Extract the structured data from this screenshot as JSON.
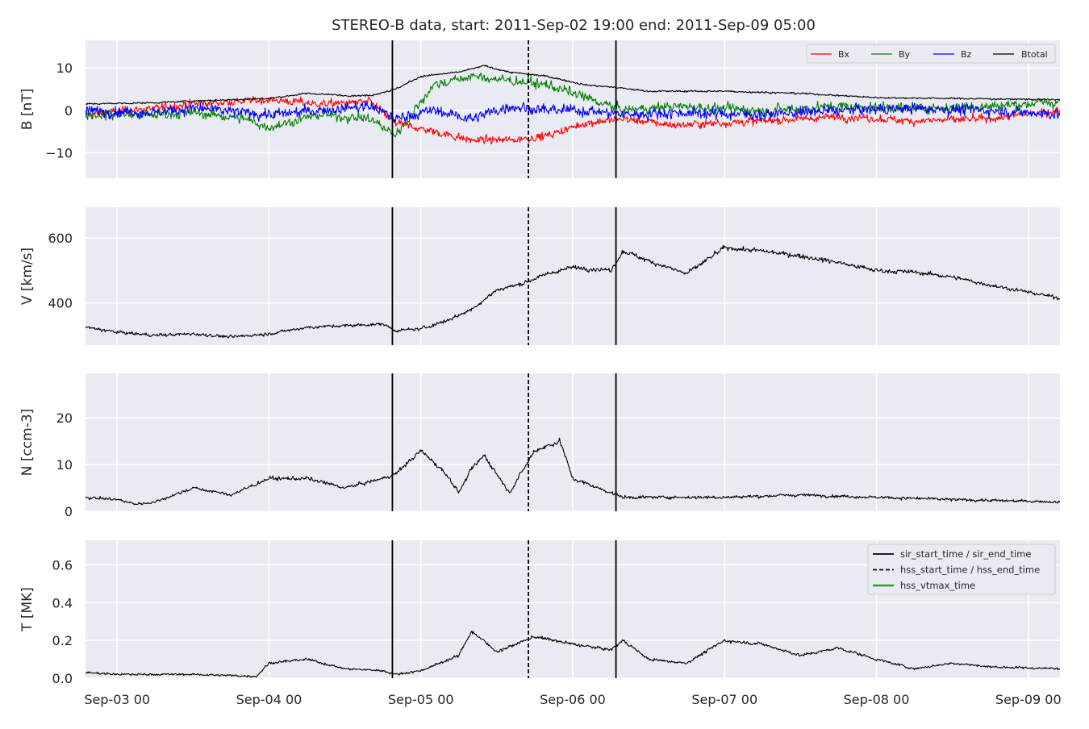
{
  "chart_data": {
    "type": "line",
    "title": "STEREO-B data, start: 2011-Sep-02 19:00  end: 2011-Sep-09 05:00",
    "xlim": [
      "2011-09-02 19:00",
      "2011-09-09 05:00"
    ],
    "x_ticks": [
      "Sep-03 00",
      "Sep-04 00",
      "Sep-05 00",
      "Sep-06 00",
      "Sep-07 00",
      "Sep-08 00",
      "Sep-09 00"
    ],
    "x_tick_dates": [
      "2011-09-03 00:00",
      "2011-09-04 00:00",
      "2011-09-05 00:00",
      "2011-09-06 00:00",
      "2011-09-07 00:00",
      "2011-09-08 00:00",
      "2011-09-09 00:00"
    ],
    "markers": [
      {
        "label": "sir_start_time / sir_end_time",
        "style": "solid",
        "color": "#000000",
        "times": [
          "2011-09-04 19:30",
          "2011-09-06 06:50"
        ]
      },
      {
        "label": "hss_start_time / hss_end_time",
        "style": "dashed",
        "color": "#000000",
        "times": [
          "2011-09-05 17:00"
        ]
      },
      {
        "label": "hss_vtmax_time",
        "style": "solid",
        "color": "#2ca02c",
        "times": []
      }
    ],
    "colors": {
      "Bx": "#ff0000",
      "By": "#008000",
      "Bz": "#0000ff",
      "Btotal": "#000000",
      "panel_bg": "#eaeaf2",
      "grid": "#ffffff"
    },
    "panels": [
      {
        "id": "B",
        "ylabel": "B [nT]",
        "ylim": [
          -16,
          16.5
        ],
        "yticks": [
          -10,
          0,
          10
        ],
        "ytick_labels": [
          "−10",
          "0",
          "10"
        ],
        "legend": "top-right",
        "series": [
          {
            "name": "Bx",
            "points": [
              [
                "2011-09-02 19:00",
                -1
              ],
              [
                "2011-09-03 06:00",
                0.5
              ],
              [
                "2011-09-03 12:00",
                1.5
              ],
              [
                "2011-09-04 00:00",
                2.5
              ],
              [
                "2011-09-04 08:00",
                1.5
              ],
              [
                "2011-09-04 16:00",
                2
              ],
              [
                "2011-09-04 20:00",
                -3
              ],
              [
                "2011-09-05 02:00",
                -5
              ],
              [
                "2011-09-05 08:00",
                -7
              ],
              [
                "2011-09-05 14:00",
                -7
              ],
              [
                "2011-09-05 20:00",
                -6
              ],
              [
                "2011-09-06 02:00",
                -3
              ],
              [
                "2011-09-06 08:00",
                -2
              ],
              [
                "2011-09-06 16:00",
                -3.5
              ],
              [
                "2011-09-07 06:00",
                -2.5
              ],
              [
                "2011-09-07 18:00",
                -1.5
              ],
              [
                "2011-09-08 06:00",
                -2.5
              ],
              [
                "2011-09-08 18:00",
                -2
              ],
              [
                "2011-09-09 05:00",
                0
              ]
            ]
          },
          {
            "name": "By",
            "points": [
              [
                "2011-09-02 19:00",
                -1
              ],
              [
                "2011-09-03 06:00",
                -1
              ],
              [
                "2011-09-03 12:00",
                -0.5
              ],
              [
                "2011-09-03 20:00",
                -2
              ],
              [
                "2011-09-04 00:00",
                -4
              ],
              [
                "2011-09-04 08:00",
                -1
              ],
              [
                "2011-09-04 16:00",
                -2
              ],
              [
                "2011-09-04 20:00",
                -6
              ],
              [
                "2011-09-05 02:00",
                6
              ],
              [
                "2011-09-05 08:00",
                8
              ],
              [
                "2011-09-05 14:00",
                7
              ],
              [
                "2011-09-05 20:00",
                6
              ],
              [
                "2011-09-06 02:00",
                3
              ],
              [
                "2011-09-06 08:00",
                0
              ],
              [
                "2011-09-06 16:00",
                1
              ],
              [
                "2011-09-07 06:00",
                0
              ],
              [
                "2011-09-07 18:00",
                1
              ],
              [
                "2011-09-08 06:00",
                0.5
              ],
              [
                "2011-09-08 18:00",
                1
              ],
              [
                "2011-09-09 05:00",
                2
              ]
            ]
          },
          {
            "name": "Bz",
            "points": [
              [
                "2011-09-02 19:00",
                0
              ],
              [
                "2011-09-03 06:00",
                -0.5
              ],
              [
                "2011-09-03 12:00",
                0.5
              ],
              [
                "2011-09-04 00:00",
                -1
              ],
              [
                "2011-09-04 08:00",
                0
              ],
              [
                "2011-09-04 16:00",
                1
              ],
              [
                "2011-09-04 20:00",
                -2
              ],
              [
                "2011-09-05 02:00",
                0
              ],
              [
                "2011-09-05 08:00",
                -2
              ],
              [
                "2011-09-05 14:00",
                1
              ],
              [
                "2011-09-05 20:00",
                0
              ],
              [
                "2011-09-06 02:00",
                0
              ],
              [
                "2011-09-06 08:00",
                -1
              ],
              [
                "2011-09-06 16:00",
                -0.5
              ],
              [
                "2011-09-07 06:00",
                -1
              ],
              [
                "2011-09-07 18:00",
                0
              ],
              [
                "2011-09-08 06:00",
                0.5
              ],
              [
                "2011-09-08 18:00",
                0
              ],
              [
                "2011-09-09 05:00",
                -1
              ]
            ]
          },
          {
            "name": "Btotal",
            "points": [
              [
                "2011-09-02 19:00",
                1.5
              ],
              [
                "2011-09-03 06:00",
                1.8
              ],
              [
                "2011-09-03 12:00",
                2.2
              ],
              [
                "2011-09-04 00:00",
                2.8
              ],
              [
                "2011-09-04 06:00",
                4
              ],
              [
                "2011-09-04 12:00",
                3.5
              ],
              [
                "2011-09-04 16:00",
                3.5
              ],
              [
                "2011-09-04 20:00",
                5
              ],
              [
                "2011-09-05 00:00",
                8
              ],
              [
                "2011-09-05 06:00",
                9
              ],
              [
                "2011-09-05 10:00",
                10.5
              ],
              [
                "2011-09-05 14:00",
                9
              ],
              [
                "2011-09-05 20:00",
                8
              ],
              [
                "2011-09-06 02:00",
                6
              ],
              [
                "2011-09-06 06:00",
                5.5
              ],
              [
                "2011-09-06 12:00",
                4.5
              ],
              [
                "2011-09-07 00:00",
                4.5
              ],
              [
                "2011-09-07 12:00",
                4
              ],
              [
                "2011-09-08 00:00",
                3
              ],
              [
                "2011-09-08 12:00",
                2.8
              ],
              [
                "2011-09-09 05:00",
                2.5
              ]
            ]
          }
        ]
      },
      {
        "id": "V",
        "ylabel": "V [km/s]",
        "ylim": [
          270,
          695
        ],
        "yticks": [
          400,
          600
        ],
        "ytick_labels": [
          "400",
          "600"
        ],
        "series": [
          {
            "name": "V",
            "points": [
              [
                "2011-09-02 19:00",
                325
              ],
              [
                "2011-09-03 00:00",
                310
              ],
              [
                "2011-09-03 06:00",
                300
              ],
              [
                "2011-09-03 12:00",
                305
              ],
              [
                "2011-09-03 18:00",
                295
              ],
              [
                "2011-09-04 00:00",
                305
              ],
              [
                "2011-09-04 06:00",
                325
              ],
              [
                "2011-09-04 12:00",
                330
              ],
              [
                "2011-09-04 18:00",
                335
              ],
              [
                "2011-09-04 20:00",
                315
              ],
              [
                "2011-09-05 00:00",
                320
              ],
              [
                "2011-09-05 04:00",
                345
              ],
              [
                "2011-09-05 08:00",
                380
              ],
              [
                "2011-09-05 12:00",
                440
              ],
              [
                "2011-09-05 16:00",
                460
              ],
              [
                "2011-09-05 20:00",
                490
              ],
              [
                "2011-09-06 00:00",
                510
              ],
              [
                "2011-09-06 06:00",
                500
              ],
              [
                "2011-09-06 08:00",
                560
              ],
              [
                "2011-09-06 12:00",
                530
              ],
              [
                "2011-09-06 18:00",
                490
              ],
              [
                "2011-09-07 00:00",
                570
              ],
              [
                "2011-09-07 06:00",
                560
              ],
              [
                "2011-09-07 12:00",
                545
              ],
              [
                "2011-09-07 18:00",
                525
              ],
              [
                "2011-09-08 00:00",
                500
              ],
              [
                "2011-09-08 06:00",
                495
              ],
              [
                "2011-09-08 12:00",
                480
              ],
              [
                "2011-09-08 18:00",
                455
              ],
              [
                "2011-09-09 05:00",
                415
              ]
            ]
          }
        ]
      },
      {
        "id": "N",
        "ylabel": "N [ccm-3]",
        "ylim": [
          0,
          29.5
        ],
        "yticks": [
          0,
          10,
          20
        ],
        "ytick_labels": [
          "0",
          "10",
          "20"
        ],
        "series": [
          {
            "name": "N",
            "points": [
              [
                "2011-09-02 19:00",
                3
              ],
              [
                "2011-09-03 00:00",
                2.5
              ],
              [
                "2011-09-03 03:00",
                1.5
              ],
              [
                "2011-09-03 06:00",
                2
              ],
              [
                "2011-09-03 12:00",
                5
              ],
              [
                "2011-09-03 18:00",
                3.5
              ],
              [
                "2011-09-04 00:00",
                7
              ],
              [
                "2011-09-04 06:00",
                7
              ],
              [
                "2011-09-04 12:00",
                5
              ],
              [
                "2011-09-04 18:00",
                7
              ],
              [
                "2011-09-04 20:00",
                8
              ],
              [
                "2011-09-05 00:00",
                13
              ],
              [
                "2011-09-05 04:00",
                8
              ],
              [
                "2011-09-05 06:00",
                4
              ],
              [
                "2011-09-05 08:00",
                9
              ],
              [
                "2011-09-05 10:00",
                12
              ],
              [
                "2011-09-05 14:00",
                4
              ],
              [
                "2011-09-05 18:00",
                13
              ],
              [
                "2011-09-05 22:00",
                15
              ],
              [
                "2011-09-06 00:00",
                7
              ],
              [
                "2011-09-06 04:00",
                5
              ],
              [
                "2011-09-06 08:00",
                3
              ],
              [
                "2011-09-06 12:00",
                3
              ],
              [
                "2011-09-07 00:00",
                3
              ],
              [
                "2011-09-07 12:00",
                3.5
              ],
              [
                "2011-09-08 00:00",
                3
              ],
              [
                "2011-09-08 12:00",
                2.5
              ],
              [
                "2011-09-09 05:00",
                2
              ]
            ]
          }
        ]
      },
      {
        "id": "T",
        "ylabel": "T [MK]",
        "ylim": [
          0,
          0.73
        ],
        "yticks": [
          0,
          0.2,
          0.4,
          0.6
        ],
        "ytick_labels": [
          "0.0",
          "0.2",
          "0.4",
          "0.6"
        ],
        "legend": "top-right",
        "series": [
          {
            "name": "T",
            "points": [
              [
                "2011-09-02 19:00",
                0.03
              ],
              [
                "2011-09-03 00:00",
                0.02
              ],
              [
                "2011-09-03 12:00",
                0.02
              ],
              [
                "2011-09-03 22:00",
                0.01
              ],
              [
                "2011-09-04 00:00",
                0.08
              ],
              [
                "2011-09-04 06:00",
                0.1
              ],
              [
                "2011-09-04 12:00",
                0.05
              ],
              [
                "2011-09-04 18:00",
                0.04
              ],
              [
                "2011-09-04 20:00",
                0.02
              ],
              [
                "2011-09-05 00:00",
                0.04
              ],
              [
                "2011-09-05 06:00",
                0.12
              ],
              [
                "2011-09-05 08:00",
                0.25
              ],
              [
                "2011-09-05 12:00",
                0.14
              ],
              [
                "2011-09-05 18:00",
                0.22
              ],
              [
                "2011-09-06 00:00",
                0.18
              ],
              [
                "2011-09-06 06:00",
                0.15
              ],
              [
                "2011-09-06 08:00",
                0.2
              ],
              [
                "2011-09-06 12:00",
                0.1
              ],
              [
                "2011-09-06 18:00",
                0.08
              ],
              [
                "2011-09-07 00:00",
                0.2
              ],
              [
                "2011-09-07 06:00",
                0.18
              ],
              [
                "2011-09-07 12:00",
                0.12
              ],
              [
                "2011-09-07 18:00",
                0.16
              ],
              [
                "2011-09-08 00:00",
                0.1
              ],
              [
                "2011-09-08 06:00",
                0.05
              ],
              [
                "2011-09-08 12:00",
                0.08
              ],
              [
                "2011-09-08 18:00",
                0.06
              ],
              [
                "2011-09-09 05:00",
                0.05
              ]
            ]
          }
        ]
      }
    ]
  }
}
